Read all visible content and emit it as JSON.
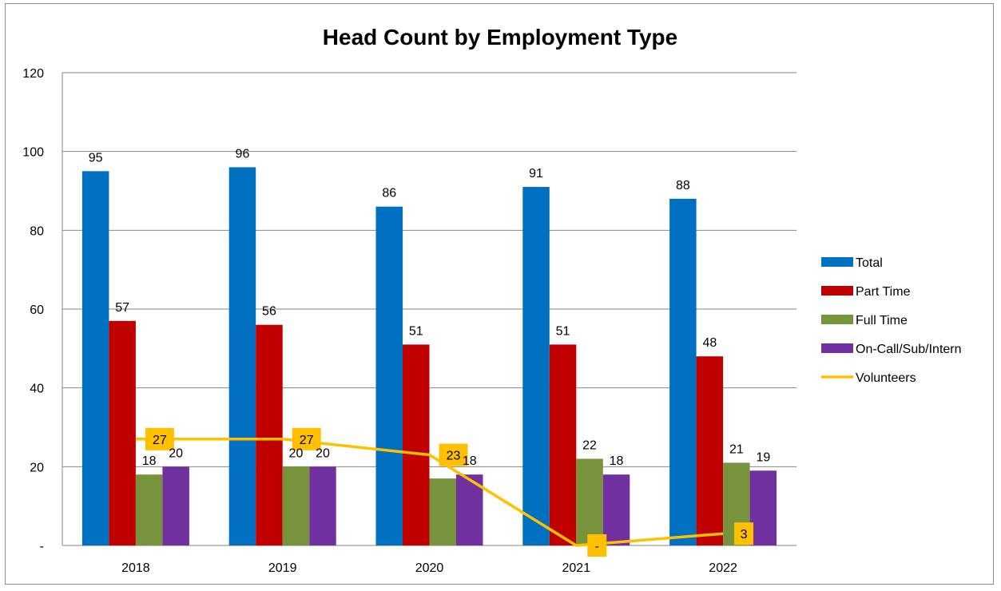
{
  "chart_data": {
    "type": "bar",
    "title": "Head Count by Employment Type",
    "categories": [
      "2018",
      "2019",
      "2020",
      "2021",
      "2022"
    ],
    "ylim": [
      0,
      120
    ],
    "yticks": [
      "-",
      "20",
      "40",
      "60",
      "80",
      "100",
      "120"
    ],
    "grid": true,
    "legend_position": "right",
    "series": [
      {
        "name": "Total",
        "type": "bar",
        "color": "#0070C0",
        "values": [
          95,
          96,
          86,
          91,
          88
        ],
        "labels": [
          "95",
          "96",
          "86",
          "91",
          "88"
        ]
      },
      {
        "name": "Part Time",
        "type": "bar",
        "color": "#C00000",
        "values": [
          57,
          56,
          51,
          51,
          48
        ],
        "labels": [
          "57",
          "56",
          "51",
          "51",
          "48"
        ]
      },
      {
        "name": "Full Time",
        "type": "bar",
        "color": "#77933C",
        "values": [
          18,
          20,
          17,
          22,
          21
        ],
        "labels": [
          "18",
          "20",
          "",
          "22",
          "21"
        ]
      },
      {
        "name": "On-Call/Sub/Intern",
        "type": "bar",
        "color": "#7030A0",
        "values": [
          20,
          20,
          18,
          18,
          19
        ],
        "labels": [
          "20",
          "20",
          "18",
          "18",
          "19"
        ]
      },
      {
        "name": "Volunteers",
        "type": "line",
        "color": "#FFC000",
        "values": [
          27,
          27,
          23,
          0,
          3
        ],
        "labels": [
          "27",
          "27",
          "23",
          "-",
          "3"
        ]
      }
    ]
  }
}
